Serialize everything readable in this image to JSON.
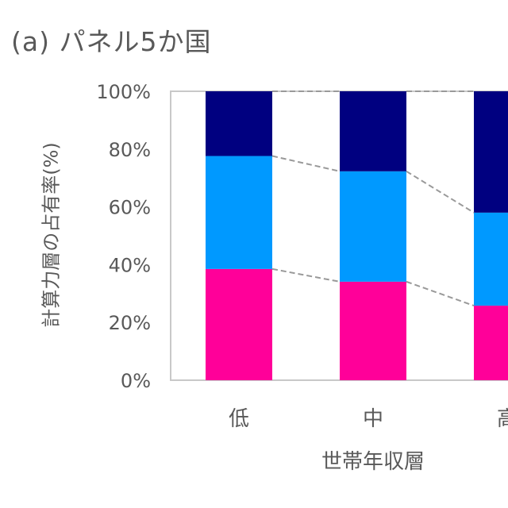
{
  "chart_data": {
    "type": "bar",
    "stacked": true,
    "title": "(a) パネル5か国",
    "xlabel": "世帯年収層",
    "ylabel": "計算力層の占有率(%)",
    "categories": [
      "低",
      "中",
      "高"
    ],
    "ylim": [
      0,
      100
    ],
    "yticks": [
      "0%",
      "20%",
      "40%",
      "60%",
      "80%",
      "100%"
    ],
    "series": [
      {
        "values": [
          38.5,
          34.1,
          25.8
        ],
        "color": "#ff0099"
      },
      {
        "values": [
          39.1,
          38.2,
          32.2
        ],
        "color": "#0099ff"
      },
      {
        "values": [
          22.4,
          27.7,
          42.0
        ],
        "color": "#000080"
      }
    ],
    "series_lines": "dashed gray connectors between segment tops",
    "grid": false,
    "legend": "none"
  }
}
